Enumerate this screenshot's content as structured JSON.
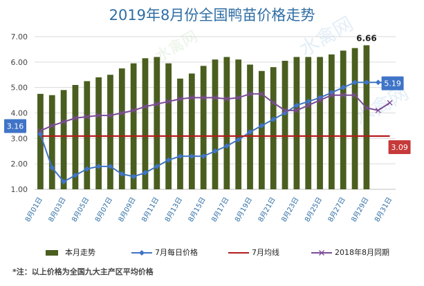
{
  "title": "2019年8月份全国鸭苗价格走势",
  "footnote": "*注：以上价格为全国九大主产区平均价格",
  "chart_data": {
    "type": "bar",
    "title": "2019年8月份全国鸭苗价格走势",
    "ylim": [
      1.0,
      7.0
    ],
    "yticks": [
      "1.00",
      "2.00",
      "3.00",
      "4.00",
      "5.00",
      "6.00",
      "7.00"
    ],
    "grid": true,
    "legend_position": "bottom",
    "categories": [
      "8月01日",
      "8月02日",
      "8月03日",
      "8月04日",
      "8月05日",
      "8月06日",
      "8月07日",
      "8月08日",
      "8月09日",
      "8月10日",
      "8月11日",
      "8月12日",
      "8月13日",
      "8月14日",
      "8月15日",
      "8月16日",
      "8月17日",
      "8月18日",
      "8月19日",
      "8月20日",
      "8月21日",
      "8月22日",
      "8月23日",
      "8月24日",
      "8月25日",
      "8月26日",
      "8月27日",
      "8月28日",
      "8月29日",
      "8月30日",
      "8月31日"
    ],
    "xtick_labels": [
      "8月01日",
      "8月03日",
      "8月05日",
      "8月07日",
      "8月09日",
      "8月11日",
      "8月13日",
      "8月15日",
      "8月17日",
      "8月19日",
      "8月21日",
      "8月23日",
      "8月25日",
      "8月27日",
      "8月29日",
      "8月31日"
    ],
    "series": [
      {
        "name": "本月走势",
        "type": "bar",
        "color": "#4a5e1f",
        "values": [
          4.75,
          4.7,
          4.9,
          5.1,
          5.25,
          5.4,
          5.5,
          5.75,
          5.95,
          6.15,
          6.2,
          5.95,
          5.35,
          5.55,
          5.85,
          6.1,
          6.2,
          6.1,
          5.9,
          5.65,
          5.8,
          6.05,
          6.2,
          6.2,
          6.2,
          6.3,
          6.45,
          6.55,
          6.66,
          null,
          null
        ]
      },
      {
        "name": "7月每日价格",
        "type": "line",
        "color": "#3f74c7",
        "marker": "diamond",
        "values": [
          3.16,
          1.85,
          1.3,
          1.55,
          1.8,
          1.9,
          1.9,
          1.6,
          1.5,
          1.65,
          1.9,
          2.15,
          2.3,
          2.3,
          2.3,
          2.5,
          2.7,
          2.95,
          3.25,
          3.5,
          3.75,
          4.0,
          4.3,
          4.45,
          4.6,
          4.8,
          5.0,
          5.2,
          5.2,
          5.2,
          5.19
        ]
      },
      {
        "name": "7月均线",
        "type": "line",
        "color": "#b31b1b",
        "values": [
          3.09,
          3.09,
          3.09,
          3.09,
          3.09,
          3.09,
          3.09,
          3.09,
          3.09,
          3.09,
          3.09,
          3.09,
          3.09,
          3.09,
          3.09,
          3.09,
          3.09,
          3.09,
          3.09,
          3.09,
          3.09,
          3.09,
          3.09,
          3.09,
          3.09,
          3.09,
          3.09,
          3.09,
          3.09,
          3.09,
          3.09
        ]
      },
      {
        "name": "2018年8月同期",
        "type": "line",
        "color": "#7b4b96",
        "marker": "x",
        "values": [
          3.3,
          3.5,
          3.65,
          3.8,
          3.85,
          3.9,
          3.9,
          4.0,
          4.1,
          4.25,
          4.35,
          4.45,
          4.55,
          4.6,
          4.6,
          4.6,
          4.55,
          4.6,
          4.75,
          4.75,
          4.4,
          4.1,
          4.1,
          4.3,
          4.5,
          4.7,
          4.7,
          4.7,
          4.2,
          4.1,
          4.4
        ]
      }
    ],
    "annotations": [
      {
        "text": "6.66",
        "series": "本月走势",
        "index": 28,
        "style": "plain"
      },
      {
        "text": "3.16",
        "series": "7月每日价格",
        "index": 0,
        "style": "box",
        "color": "#3f74c7"
      },
      {
        "text": "5.19",
        "series": "7月每日价格",
        "index": 30,
        "style": "box",
        "color": "#3f74c7"
      },
      {
        "text": "3.09",
        "series": "7月均线",
        "index": 30,
        "style": "box",
        "color": "#c63a3a"
      }
    ]
  }
}
